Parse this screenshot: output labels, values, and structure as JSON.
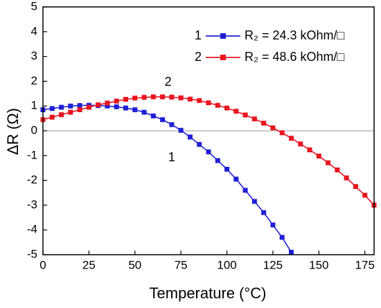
{
  "chart_data": {
    "type": "line",
    "x_label": "Temperature (°C)",
    "y_label": "ΔR (Ω)",
    "xlim": [
      0,
      180
    ],
    "xticks": [
      0,
      25,
      50,
      75,
      100,
      125,
      150,
      175
    ],
    "ylim": [
      -5,
      5
    ],
    "yticks": [
      -5,
      -4,
      -3,
      -2,
      -1,
      0,
      1,
      2,
      3,
      4,
      5
    ],
    "zero_line": true,
    "legend": "upper right",
    "annotations": [
      {
        "text": "1",
        "x": 70,
        "y": -1.1
      },
      {
        "text": "2",
        "x": 68,
        "y": 1.95
      }
    ],
    "series": [
      {
        "label": "1",
        "name": "R₂ = 24.3 kOhm/□",
        "color": "#1f1fd6",
        "x": [
          0,
          5,
          10,
          15,
          20,
          25,
          30,
          35,
          40,
          45,
          50,
          55,
          60,
          65,
          70,
          75,
          80,
          85,
          90,
          95,
          100,
          105,
          110,
          115,
          120,
          125,
          130,
          135
        ],
        "values": [
          0.85,
          0.9,
          0.95,
          1.0,
          1.02,
          1.03,
          1.02,
          1.0,
          0.97,
          0.92,
          0.85,
          0.75,
          0.6,
          0.45,
          0.25,
          0.02,
          -0.25,
          -0.55,
          -0.85,
          -1.2,
          -1.55,
          -1.95,
          -2.4,
          -2.85,
          -3.3,
          -3.8,
          -4.3,
          -4.9
        ]
      },
      {
        "label": "2",
        "name": "R₂ = 48.6 kOhm/□",
        "color": "#e8141e",
        "x": [
          0,
          5,
          10,
          15,
          20,
          25,
          30,
          35,
          40,
          45,
          50,
          55,
          60,
          65,
          70,
          75,
          80,
          85,
          90,
          95,
          100,
          105,
          110,
          115,
          120,
          125,
          130,
          135,
          140,
          145,
          150,
          155,
          160,
          165,
          170,
          175,
          180
        ],
        "values": [
          0.45,
          0.55,
          0.65,
          0.75,
          0.85,
          0.95,
          1.05,
          1.12,
          1.2,
          1.27,
          1.32,
          1.35,
          1.37,
          1.37,
          1.36,
          1.33,
          1.28,
          1.22,
          1.13,
          1.03,
          0.92,
          0.79,
          0.64,
          0.48,
          0.31,
          0.12,
          -0.08,
          -0.3,
          -0.53,
          -0.77,
          -1.02,
          -1.29,
          -1.58,
          -1.9,
          -2.25,
          -2.6,
          -3.0
        ]
      }
    ]
  }
}
